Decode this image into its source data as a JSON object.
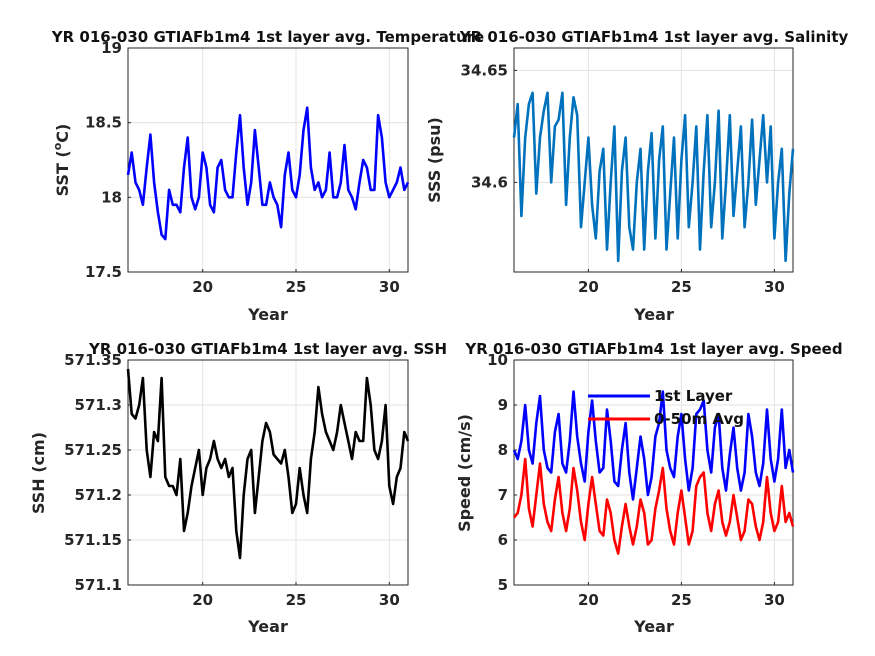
{
  "chart_data": [
    {
      "type": "line",
      "title": "YR 016-030 GTIAFb1m4 1st layer avg. Temperature",
      "xlabel": "Year",
      "ylabel_main": "SST (",
      "ylabel_sup": "o",
      "ylabel_tail": "C)",
      "xlim": [
        16,
        31
      ],
      "ylim": [
        17.5,
        19
      ],
      "xticks": [
        20,
        25,
        30
      ],
      "yticks": [
        17.5,
        18,
        18.5,
        19
      ],
      "ytick_labels": [
        "17.5",
        "18",
        "18.5",
        "19"
      ],
      "grid": true,
      "series": [
        {
          "color": "#0000ff",
          "x": [
            16.0,
            16.2,
            16.4,
            16.6,
            16.8,
            17.0,
            17.2,
            17.4,
            17.6,
            17.8,
            18.0,
            18.2,
            18.4,
            18.6,
            18.8,
            19.0,
            19.2,
            19.4,
            19.6,
            19.8,
            20.0,
            20.2,
            20.4,
            20.6,
            20.8,
            21.0,
            21.2,
            21.4,
            21.6,
            21.8,
            22.0,
            22.2,
            22.4,
            22.6,
            22.8,
            23.0,
            23.2,
            23.4,
            23.6,
            23.8,
            24.0,
            24.2,
            24.4,
            24.6,
            24.8,
            25.0,
            25.2,
            25.4,
            25.6,
            25.8,
            26.0,
            26.2,
            26.4,
            26.6,
            26.8,
            27.0,
            27.2,
            27.4,
            27.6,
            27.8,
            28.0,
            28.2,
            28.4,
            28.6,
            28.8,
            29.0,
            29.2,
            29.4,
            29.6,
            29.8,
            30.0,
            30.2,
            30.4,
            30.6,
            30.8,
            31.0
          ],
          "y": [
            18.15,
            18.3,
            18.1,
            18.05,
            17.95,
            18.2,
            18.42,
            18.1,
            17.9,
            17.75,
            17.72,
            18.05,
            17.95,
            17.95,
            17.9,
            18.2,
            18.4,
            18.0,
            17.92,
            18.0,
            18.3,
            18.2,
            17.95,
            17.9,
            18.2,
            18.25,
            18.05,
            18.0,
            18.0,
            18.3,
            18.55,
            18.2,
            17.95,
            18.1,
            18.45,
            18.2,
            17.95,
            17.95,
            18.1,
            18.0,
            17.95,
            17.8,
            18.15,
            18.3,
            18.05,
            18.0,
            18.15,
            18.45,
            18.6,
            18.2,
            18.05,
            18.1,
            18.0,
            18.05,
            18.3,
            18.0,
            18.0,
            18.1,
            18.35,
            18.05,
            18.0,
            17.92,
            18.1,
            18.25,
            18.2,
            18.05,
            18.05,
            18.55,
            18.4,
            18.1,
            18.0,
            18.05,
            18.1,
            18.2,
            18.05,
            18.1
          ]
        }
      ]
    },
    {
      "type": "line",
      "title": "YR 016-030 GTIAFb1m4 1st layer avg. Salinity",
      "xlabel": "Year",
      "ylabel": "SSS (psu)",
      "xlim": [
        16,
        31
      ],
      "ylim": [
        34.56,
        34.66
      ],
      "xticks": [
        20,
        25,
        30
      ],
      "yticks": [
        34.6,
        34.65
      ],
      "ytick_labels": [
        "34.6",
        "34.65"
      ],
      "grid": true,
      "series": [
        {
          "color": "#0072bd",
          "x": [
            16.0,
            16.2,
            16.4,
            16.6,
            16.8,
            17.0,
            17.2,
            17.4,
            17.6,
            17.8,
            18.0,
            18.2,
            18.4,
            18.6,
            18.8,
            19.0,
            19.2,
            19.4,
            19.6,
            19.8,
            20.0,
            20.2,
            20.4,
            20.6,
            20.8,
            21.0,
            21.2,
            21.4,
            21.6,
            21.8,
            22.0,
            22.2,
            22.4,
            22.6,
            22.8,
            23.0,
            23.2,
            23.4,
            23.6,
            23.8,
            24.0,
            24.2,
            24.4,
            24.6,
            24.8,
            25.0,
            25.2,
            25.4,
            25.6,
            25.8,
            26.0,
            26.2,
            26.4,
            26.6,
            26.8,
            27.0,
            27.2,
            27.4,
            27.6,
            27.8,
            28.0,
            28.2,
            28.4,
            28.6,
            28.8,
            29.0,
            29.2,
            29.4,
            29.6,
            29.8,
            30.0,
            30.2,
            30.4,
            30.6,
            30.8,
            31.0
          ],
          "y": [
            34.62,
            34.635,
            34.585,
            34.62,
            34.635,
            34.64,
            34.595,
            34.62,
            34.632,
            34.64,
            34.6,
            34.625,
            34.628,
            34.64,
            34.59,
            34.62,
            34.638,
            34.63,
            34.58,
            34.6,
            34.62,
            34.59,
            34.575,
            34.605,
            34.615,
            34.57,
            34.6,
            34.625,
            34.565,
            34.605,
            34.62,
            34.58,
            34.57,
            34.6,
            34.615,
            34.57,
            34.605,
            34.622,
            34.575,
            34.61,
            34.625,
            34.57,
            34.595,
            34.62,
            34.575,
            34.61,
            34.63,
            34.58,
            34.6,
            34.625,
            34.57,
            34.605,
            34.63,
            34.58,
            34.6,
            34.632,
            34.575,
            34.6,
            34.63,
            34.585,
            34.605,
            34.625,
            34.58,
            34.6,
            34.628,
            34.59,
            34.61,
            34.63,
            34.6,
            34.625,
            34.575,
            34.6,
            34.615,
            34.565,
            34.595,
            34.615
          ]
        }
      ]
    },
    {
      "type": "line",
      "title": "YR 016-030 GTIAFb1m4 1st layer avg. SSH",
      "xlabel": "Year",
      "ylabel": "SSH (cm)",
      "xlim": [
        16,
        31
      ],
      "ylim": [
        571.1,
        571.35
      ],
      "xticks": [
        20,
        25,
        30
      ],
      "yticks": [
        571.1,
        571.15,
        571.2,
        571.25,
        571.3,
        571.35
      ],
      "ytick_labels": [
        "571.1",
        "571.15",
        "571.2",
        "571.25",
        "571.3",
        "571.35"
      ],
      "grid": true,
      "series": [
        {
          "color": "#000000",
          "x": [
            16.0,
            16.2,
            16.4,
            16.6,
            16.8,
            17.0,
            17.2,
            17.4,
            17.6,
            17.8,
            18.0,
            18.2,
            18.4,
            18.6,
            18.8,
            19.0,
            19.2,
            19.4,
            19.6,
            19.8,
            20.0,
            20.2,
            20.4,
            20.6,
            20.8,
            21.0,
            21.2,
            21.4,
            21.6,
            21.8,
            22.0,
            22.2,
            22.4,
            22.6,
            22.8,
            23.0,
            23.2,
            23.4,
            23.6,
            23.8,
            24.0,
            24.2,
            24.4,
            24.6,
            24.8,
            25.0,
            25.2,
            25.4,
            25.6,
            25.8,
            26.0,
            26.2,
            26.4,
            26.6,
            26.8,
            27.0,
            27.2,
            27.4,
            27.6,
            27.8,
            28.0,
            28.2,
            28.4,
            28.6,
            28.8,
            29.0,
            29.2,
            29.4,
            29.6,
            29.8,
            30.0,
            30.2,
            30.4,
            30.6,
            30.8,
            31.0
          ],
          "y": [
            571.34,
            571.29,
            571.285,
            571.3,
            571.33,
            571.25,
            571.22,
            571.27,
            571.26,
            571.33,
            571.22,
            571.21,
            571.21,
            571.2,
            571.24,
            571.16,
            571.18,
            571.21,
            571.23,
            571.25,
            571.2,
            571.23,
            571.24,
            571.26,
            571.24,
            571.23,
            571.24,
            571.22,
            571.23,
            571.16,
            571.13,
            571.2,
            571.24,
            571.25,
            571.18,
            571.22,
            571.26,
            571.28,
            571.27,
            571.245,
            571.24,
            571.235,
            571.25,
            571.22,
            571.18,
            571.19,
            571.23,
            571.2,
            571.18,
            571.24,
            571.27,
            571.32,
            571.29,
            571.27,
            571.26,
            571.25,
            571.27,
            571.3,
            571.28,
            571.26,
            571.24,
            571.27,
            571.26,
            571.26,
            571.33,
            571.3,
            571.25,
            571.24,
            571.26,
            571.3,
            571.21,
            571.19,
            571.22,
            571.23,
            571.27,
            571.26
          ]
        }
      ]
    },
    {
      "type": "line",
      "title": "YR 016-030 GTIAFb1m4 1st layer avg. Speed",
      "xlabel": "Year",
      "ylabel": "Speed (cm/s)",
      "xlim": [
        16,
        31
      ],
      "ylim": [
        5,
        10
      ],
      "xticks": [
        20,
        25,
        30
      ],
      "yticks": [
        5,
        6,
        7,
        8,
        9,
        10
      ],
      "ytick_labels": [
        "5",
        "6",
        "7",
        "8",
        "9",
        "10"
      ],
      "grid": true,
      "legend": "top-left",
      "series": [
        {
          "name": "1st Layer",
          "color": "#0000ff",
          "x": [
            16.0,
            16.2,
            16.4,
            16.6,
            16.8,
            17.0,
            17.2,
            17.4,
            17.6,
            17.8,
            18.0,
            18.2,
            18.4,
            18.6,
            18.8,
            19.0,
            19.2,
            19.4,
            19.6,
            19.8,
            20.0,
            20.2,
            20.4,
            20.6,
            20.8,
            21.0,
            21.2,
            21.4,
            21.6,
            21.8,
            22.0,
            22.2,
            22.4,
            22.6,
            22.8,
            23.0,
            23.2,
            23.4,
            23.6,
            23.8,
            24.0,
            24.2,
            24.4,
            24.6,
            24.8,
            25.0,
            25.2,
            25.4,
            25.6,
            25.8,
            26.0,
            26.2,
            26.4,
            26.6,
            26.8,
            27.0,
            27.2,
            27.4,
            27.6,
            27.8,
            28.0,
            28.2,
            28.4,
            28.6,
            28.8,
            29.0,
            29.2,
            29.4,
            29.6,
            29.8,
            30.0,
            30.2,
            30.4,
            30.6,
            30.8,
            31.0
          ],
          "y": [
            8.0,
            7.8,
            8.2,
            9.0,
            8.0,
            7.7,
            8.6,
            9.2,
            8.0,
            7.6,
            7.5,
            8.4,
            8.8,
            7.7,
            7.5,
            8.2,
            9.3,
            8.3,
            7.7,
            7.3,
            8.4,
            9.1,
            8.2,
            7.5,
            7.6,
            8.9,
            8.2,
            7.3,
            7.2,
            8.0,
            8.6,
            7.5,
            6.9,
            7.6,
            8.3,
            7.8,
            7.0,
            7.4,
            8.3,
            8.6,
            9.3,
            8.0,
            7.6,
            7.4,
            8.3,
            8.8,
            7.8,
            7.1,
            7.6,
            8.8,
            8.9,
            9.1,
            8.0,
            7.5,
            8.5,
            8.8,
            7.6,
            7.1,
            7.9,
            8.5,
            7.6,
            7.1,
            7.5,
            8.8,
            8.3,
            7.5,
            7.2,
            7.7,
            8.9,
            7.8,
            7.3,
            7.8,
            8.9,
            7.6,
            8.0,
            7.5
          ]
        },
        {
          "name": "0-50m Avg",
          "color": "#ff0000",
          "x": [
            16.0,
            16.2,
            16.4,
            16.6,
            16.8,
            17.0,
            17.2,
            17.4,
            17.6,
            17.8,
            18.0,
            18.2,
            18.4,
            18.6,
            18.8,
            19.0,
            19.2,
            19.4,
            19.6,
            19.8,
            20.0,
            20.2,
            20.4,
            20.6,
            20.8,
            21.0,
            21.2,
            21.4,
            21.6,
            21.8,
            22.0,
            22.2,
            22.4,
            22.6,
            22.8,
            23.0,
            23.2,
            23.4,
            23.6,
            23.8,
            24.0,
            24.2,
            24.4,
            24.6,
            24.8,
            25.0,
            25.2,
            25.4,
            25.6,
            25.8,
            26.0,
            26.2,
            26.4,
            26.6,
            26.8,
            27.0,
            27.2,
            27.4,
            27.6,
            27.8,
            28.0,
            28.2,
            28.4,
            28.6,
            28.8,
            29.0,
            29.2,
            29.4,
            29.6,
            29.8,
            30.0,
            30.2,
            30.4,
            30.6,
            30.8,
            31.0
          ],
          "y": [
            6.5,
            6.6,
            7.0,
            7.8,
            6.7,
            6.3,
            7.0,
            7.7,
            6.8,
            6.4,
            6.2,
            6.9,
            7.4,
            6.6,
            6.2,
            6.7,
            7.6,
            7.1,
            6.4,
            6.0,
            6.8,
            7.4,
            6.8,
            6.2,
            6.1,
            6.9,
            6.6,
            6.0,
            5.7,
            6.3,
            6.8,
            6.3,
            5.9,
            6.3,
            6.9,
            6.6,
            5.9,
            6.0,
            6.7,
            7.1,
            7.6,
            6.7,
            6.2,
            5.9,
            6.6,
            7.1,
            6.5,
            5.9,
            6.2,
            7.2,
            7.4,
            7.5,
            6.6,
            6.2,
            6.8,
            7.1,
            6.4,
            6.1,
            6.4,
            7.0,
            6.5,
            6.0,
            6.2,
            6.9,
            6.8,
            6.3,
            6.0,
            6.4,
            7.4,
            6.6,
            6.2,
            6.4,
            7.2,
            6.4,
            6.6,
            6.3
          ]
        }
      ]
    }
  ]
}
